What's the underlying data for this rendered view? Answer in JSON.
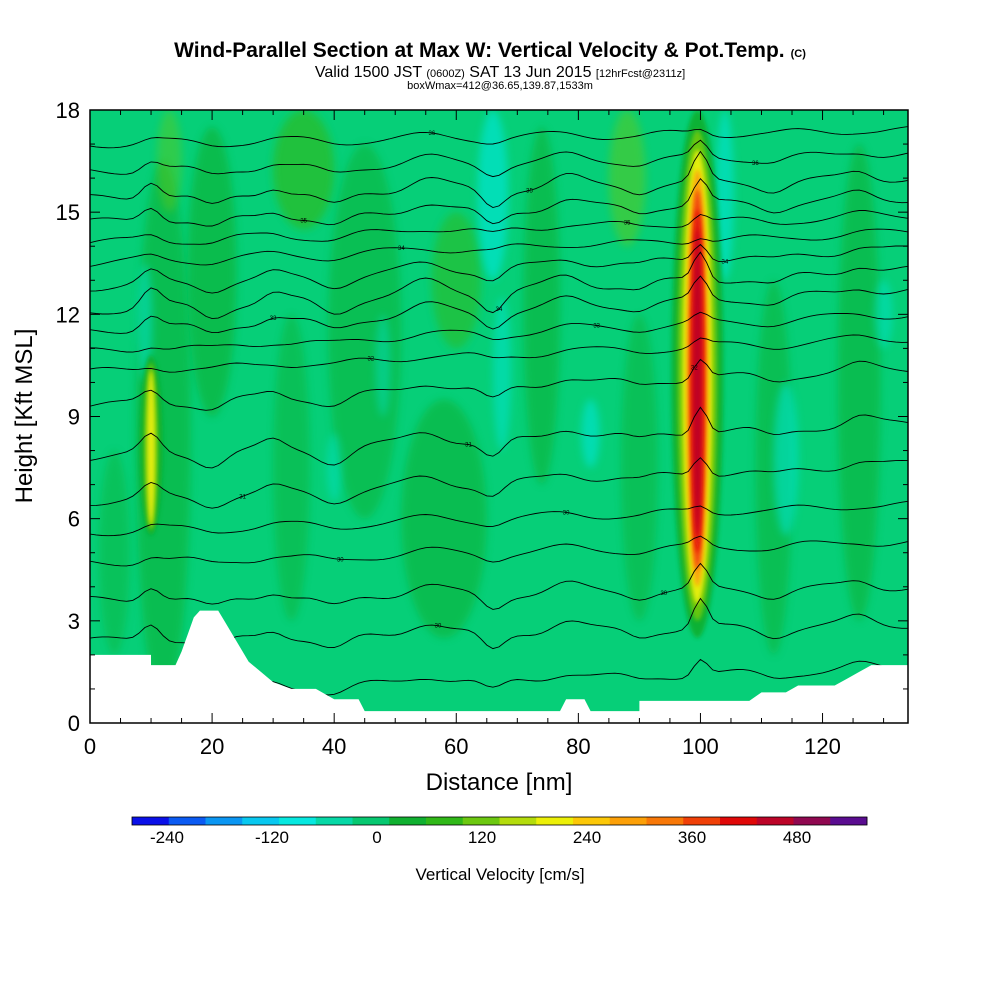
{
  "chart_data": {
    "type": "heatmap",
    "title": "Wind-Parallel Section at Max W: Vertical Velocity & Pot.Temp.",
    "title_mark": "(C)",
    "subtitle": {
      "valid": "Valid 1500 JST",
      "utc": "(0600Z)",
      "date": "SAT 13 Jun 2015",
      "fcst": "[12hrFcst@2311z]"
    },
    "subtitle2": "boxWmax=412@36.65,139.87,1533m",
    "xlabel": "Distance [nm]",
    "ylabel": "Height [Kft MSL]",
    "xlim": [
      0,
      134
    ],
    "ylim": [
      0,
      18
    ],
    "x_ticks": [
      "0",
      "20",
      "40",
      "60",
      "80",
      "100",
      "120"
    ],
    "x_tick_values": [
      0,
      20,
      40,
      60,
      80,
      100,
      120
    ],
    "y_ticks": [
      "0",
      "3",
      "6",
      "9",
      "12",
      "15",
      "18"
    ],
    "y_tick_values": [
      0,
      3,
      6,
      9,
      12,
      15,
      18
    ],
    "colorbar": {
      "label": "Vertical Velocity [cm/s]",
      "tick_labels": [
        "-240",
        "-120",
        "0",
        "120",
        "240",
        "360",
        "480"
      ],
      "tick_values": [
        -240,
        -120,
        0,
        120,
        240,
        360,
        480
      ],
      "range": [
        -280,
        560
      ],
      "colors": [
        "#0a10e8",
        "#0b5af2",
        "#0a96f2",
        "#08c8f0",
        "#06e8e0",
        "#06d8a6",
        "#06c870",
        "#10b030",
        "#30b818",
        "#6cc810",
        "#b4dc0c",
        "#ecf008",
        "#fcc808",
        "#fca008",
        "#f87808",
        "#f04008",
        "#e00808",
        "#bc0428",
        "#900850",
        "#5a0c90"
      ]
    },
    "updraft_cores": [
      {
        "x": 10,
        "y_bottom": 5.5,
        "y_top": 10.8,
        "w_max": 150
      },
      {
        "x": 99.5,
        "y_bottom": 2.5,
        "y_top": 18,
        "w_max": 412
      }
    ],
    "terrain": [
      [
        0,
        2
      ],
      [
        10,
        2
      ],
      [
        10,
        1.7
      ],
      [
        14,
        1.7
      ],
      [
        15,
        2.1
      ],
      [
        16,
        2.6
      ],
      [
        17,
        3.1
      ],
      [
        18,
        3.3
      ],
      [
        21,
        3.3
      ],
      [
        22,
        3
      ],
      [
        24,
        2.4
      ],
      [
        26,
        1.8
      ],
      [
        28,
        1.5
      ],
      [
        30,
        1.2
      ],
      [
        33,
        1
      ],
      [
        37,
        1
      ],
      [
        40,
        0.7
      ],
      [
        44,
        0.7
      ],
      [
        45,
        0.35
      ],
      [
        77,
        0.35
      ],
      [
        78,
        0.7
      ],
      [
        81,
        0.7
      ],
      [
        82,
        0.35
      ],
      [
        90,
        0.35
      ],
      [
        90,
        0.65
      ],
      [
        108,
        0.65
      ],
      [
        110,
        0.9
      ],
      [
        114,
        0.9
      ],
      [
        116,
        1.1
      ],
      [
        122,
        1.1
      ],
      [
        124,
        1.3
      ],
      [
        126,
        1.5
      ],
      [
        128,
        1.7
      ],
      [
        134,
        1.7
      ]
    ],
    "theta_levels": [
      {
        "label": "30",
        "y_left": 0.9,
        "y_right": 1.6
      },
      {
        "label": "30",
        "y_left": 2.4,
        "y_right": 2.9
      },
      {
        "label": "30",
        "y_left": 3.6,
        "y_right": 4.0
      },
      {
        "label": "30",
        "y_left": 4.7,
        "y_right": 5.3
      },
      {
        "label": "30",
        "y_left": 5.6,
        "y_right": 6.4
      },
      {
        "label": "31",
        "y_left": 6.5,
        "y_right": 7.6
      },
      {
        "label": "31",
        "y_left": 7.8,
        "y_right": 8.8
      },
      {
        "label": "32",
        "y_left": 9.3,
        "y_right": 10.4
      },
      {
        "label": "32",
        "y_left": 10.3,
        "y_right": 11.3
      },
      {
        "label": "33",
        "y_left": 10.9,
        "y_right": 12.0
      },
      {
        "label": "33",
        "y_left": 11.5,
        "y_right": 12.7
      },
      {
        "label": "34",
        "y_left": 12.1,
        "y_right": 13.3
      },
      {
        "label": "34",
        "y_left": 12.8,
        "y_right": 13.9
      },
      {
        "label": "34",
        "y_left": 13.5,
        "y_right": 14.4
      },
      {
        "label": "35",
        "y_left": 14.1,
        "y_right": 14.9
      },
      {
        "label": "35",
        "y_left": 14.7,
        "y_right": 15.4
      },
      {
        "label": "35",
        "y_left": 15.4,
        "y_right": 16.0
      },
      {
        "label": "36",
        "y_left": 16.2,
        "y_right": 16.7
      },
      {
        "label": "36",
        "y_left": 17.0,
        "y_right": 17.4
      }
    ]
  }
}
